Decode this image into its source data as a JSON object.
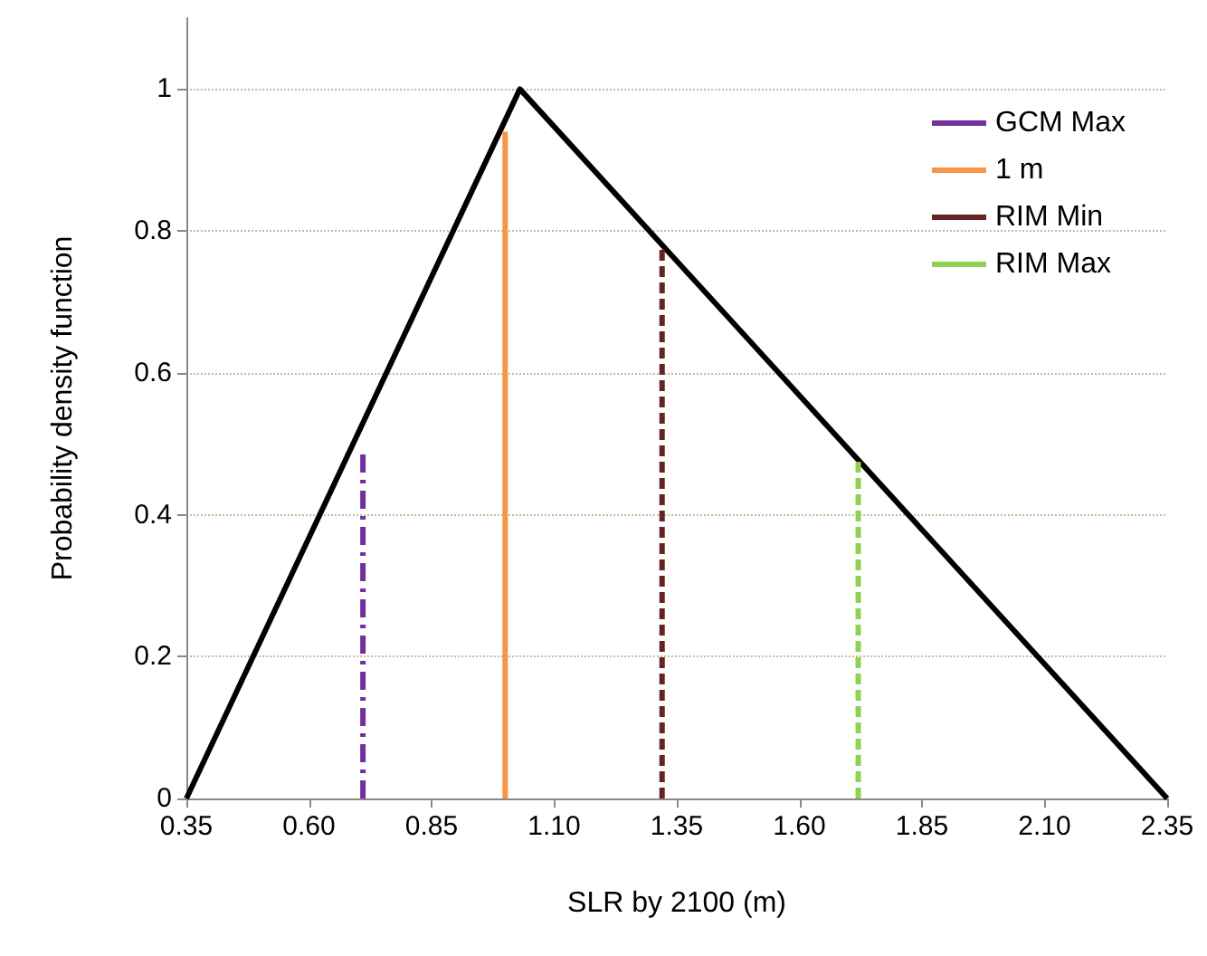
{
  "chart_data": {
    "type": "line",
    "xlabel": "SLR by 2100 (m)",
    "ylabel": "Probability density function",
    "xlim": [
      0.35,
      2.35
    ],
    "xticks": [
      0.35,
      {
        "value": 0.6,
        "label": "0.60"
      },
      0.85,
      {
        "value": 1.1,
        "label": "1.10"
      },
      1.35,
      {
        "value": 1.6,
        "label": "1.60"
      },
      1.85,
      {
        "value": 2.1,
        "label": "2.10"
      },
      2.35
    ],
    "ylim": [
      0,
      1.1
    ],
    "yticks": [
      0,
      0.2,
      0.4,
      0.6,
      0.8,
      1
    ],
    "grid": "y",
    "legend": "top right",
    "marker": "none",
    "series": [
      {
        "color": "#000000",
        "x": [
          0.35,
          1.03,
          2.35
        ],
        "values": [
          0,
          1,
          0
        ],
        "line_style": "solid"
      },
      {
        "name": "GCM Max",
        "color": "#7030a0",
        "x": [
          0.71,
          0.71
        ],
        "values": [
          0,
          0.49
        ],
        "line_style": "dashdot"
      },
      {
        "name": "1 m",
        "color": "#f79646",
        "x": [
          1.0,
          1.0
        ],
        "values": [
          0,
          0.94
        ],
        "line_style": "solid"
      },
      {
        "name": "RIM Min",
        "color": "#632523",
        "x": [
          1.32,
          1.32
        ],
        "values": [
          0,
          0.78
        ],
        "line_style": "dashed"
      },
      {
        "name": "RIM Max",
        "color": "#92d050",
        "x": [
          1.72,
          1.72
        ],
        "values": [
          0,
          0.48
        ],
        "line_style": "dashed"
      }
    ]
  }
}
